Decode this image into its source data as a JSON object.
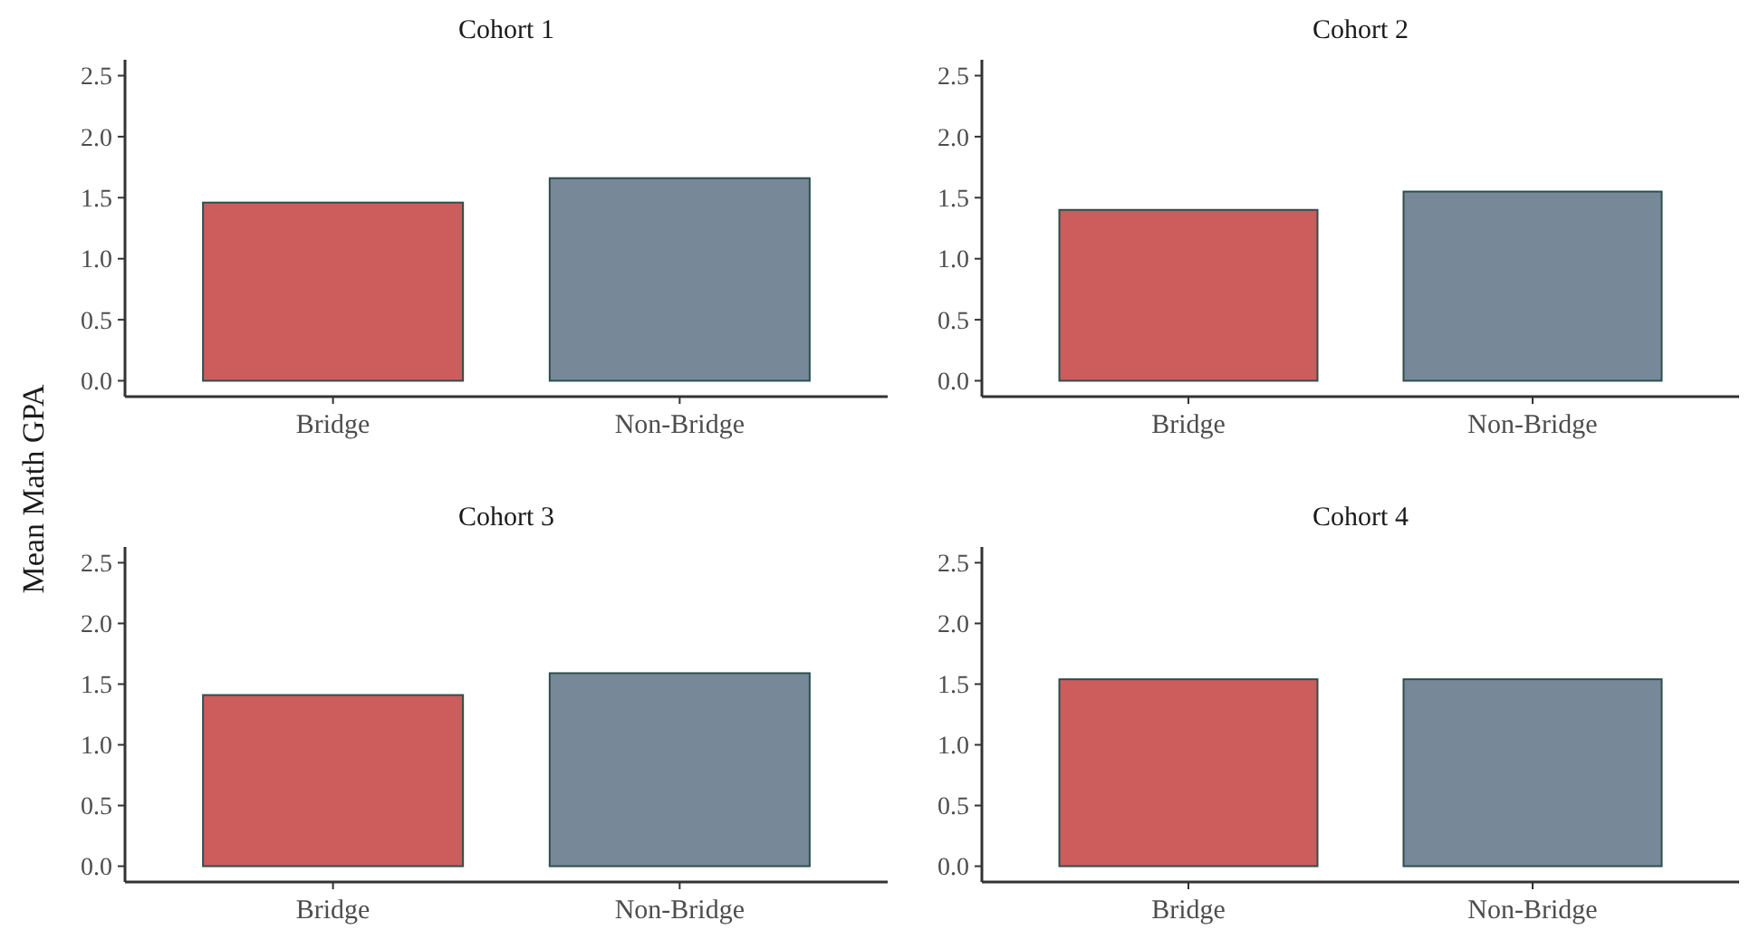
{
  "chart_data": [
    {
      "type": "bar",
      "title": "Cohort 1",
      "ylabel": "Mean Math GPA",
      "categories": [
        "Bridge",
        "Non-Bridge"
      ],
      "values": [
        1.46,
        1.66
      ],
      "colors": [
        "#cd5c5c",
        "#778899"
      ],
      "ylim": [
        -0.13,
        2.63
      ],
      "yticks": [
        {
          "value": 0,
          "label": "0.0"
        },
        {
          "value": 0.5,
          "label": "0.5"
        },
        {
          "value": 1,
          "label": "1.0"
        },
        {
          "value": 1.5,
          "label": "1.5"
        },
        {
          "value": 2,
          "label": "2.0"
        },
        {
          "value": 2.5,
          "label": "2.5"
        }
      ],
      "grid": false
    },
    {
      "type": "bar",
      "title": "Cohort 2",
      "categories": [
        "Bridge",
        "Non-Bridge"
      ],
      "values": [
        1.4,
        1.55
      ],
      "colors": [
        "#cd5c5c",
        "#778899"
      ],
      "ylim": [
        -0.13,
        2.63
      ],
      "yticks": [
        {
          "value": 0,
          "label": "0.0"
        },
        {
          "value": 0.5,
          "label": "0.5"
        },
        {
          "value": 1,
          "label": "1.0"
        },
        {
          "value": 1.5,
          "label": "1.5"
        },
        {
          "value": 2,
          "label": "2.0"
        },
        {
          "value": 2.5,
          "label": "2.5"
        }
      ],
      "grid": false
    },
    {
      "type": "bar",
      "title": "Cohort 3",
      "categories": [
        "Bridge",
        "Non-Bridge"
      ],
      "values": [
        1.41,
        1.59
      ],
      "colors": [
        "#cd5c5c",
        "#778899"
      ],
      "ylim": [
        -0.13,
        2.63
      ],
      "yticks": [
        {
          "value": 0,
          "label": "0.0"
        },
        {
          "value": 0.5,
          "label": "0.5"
        },
        {
          "value": 1,
          "label": "1.0"
        },
        {
          "value": 1.5,
          "label": "1.5"
        },
        {
          "value": 2,
          "label": "2.0"
        },
        {
          "value": 2.5,
          "label": "2.5"
        }
      ],
      "grid": false
    },
    {
      "type": "bar",
      "title": "Cohort 4",
      "categories": [
        "Bridge",
        "Non-Bridge"
      ],
      "values": [
        1.54,
        1.54
      ],
      "colors": [
        "#cd5c5c",
        "#778899"
      ],
      "ylim": [
        -0.13,
        2.63
      ],
      "yticks": [
        {
          "value": 0,
          "label": "0.0"
        },
        {
          "value": 0.5,
          "label": "0.5"
        },
        {
          "value": 1,
          "label": "1.0"
        },
        {
          "value": 1.5,
          "label": "1.5"
        },
        {
          "value": 2,
          "label": "2.0"
        },
        {
          "value": 2.5,
          "label": "2.5"
        }
      ],
      "grid": false
    }
  ]
}
